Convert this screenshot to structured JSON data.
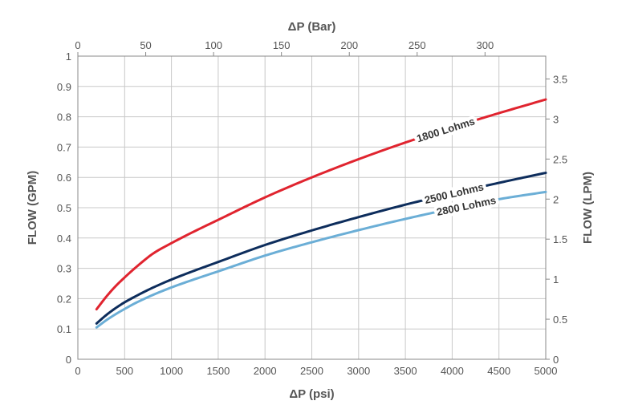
{
  "chart_data": {
    "type": "line",
    "x_label": "ΔP (psi)",
    "x_top_label": "ΔP (Bar)",
    "y_label": "FLOW (GPM)",
    "y_right_label": "FLOW (LPM)",
    "x_range": [
      0,
      5000
    ],
    "y_range": [
      0,
      1
    ],
    "x_top_range": [
      0,
      344.74
    ],
    "y_right_range": [
      0,
      3.785
    ],
    "x_ticks": [
      0,
      500,
      1000,
      1500,
      2000,
      2500,
      3000,
      3500,
      4000,
      4500,
      5000
    ],
    "y_ticks": [
      0,
      0.1,
      0.2,
      0.3,
      0.4,
      0.5,
      0.6,
      0.7,
      0.8,
      0.9,
      1
    ],
    "y_tick_labels": [
      "0",
      "0.1",
      "0.2",
      "0.3",
      "0.4",
      "0.5",
      "0.6",
      "0.7",
      "0.8",
      "0.9",
      "1"
    ],
    "x_top_ticks": [
      0,
      50,
      100,
      150,
      200,
      250,
      300
    ],
    "y_right_ticks": [
      0,
      0.5,
      1,
      1.5,
      2,
      2.5,
      3,
      3.5
    ],
    "y_right_tick_labels": [
      "0",
      "0.5",
      "1",
      "1.5",
      "2",
      "2.5",
      "3",
      "3.5"
    ],
    "grid": true,
    "series": [
      {
        "name": "1800 Lohms",
        "color": "#e0242f",
        "label_at_x": 3930,
        "x": [
          200,
          300,
          400,
          500,
          600,
          700,
          800,
          1000,
          1200,
          1500,
          2000,
          2500,
          3000,
          3500,
          4000,
          4500,
          5000
        ],
        "y": [
          0.165,
          0.205,
          0.24,
          0.27,
          0.298,
          0.324,
          0.348,
          0.383,
          0.415,
          0.46,
          0.534,
          0.6,
          0.66,
          0.715,
          0.765,
          0.812,
          0.857
        ]
      },
      {
        "name": "2500 Lohms",
        "color": "#0d2d5c",
        "label_at_x": 4020,
        "x": [
          200,
          300,
          400,
          500,
          600,
          700,
          800,
          1000,
          1200,
          1500,
          2000,
          2500,
          3000,
          3500,
          4000,
          4500,
          5000
        ],
        "y": [
          0.118,
          0.145,
          0.168,
          0.188,
          0.205,
          0.221,
          0.236,
          0.263,
          0.287,
          0.321,
          0.377,
          0.425,
          0.469,
          0.51,
          0.547,
          0.582,
          0.615
        ]
      },
      {
        "name": "2800 Lohms",
        "color": "#6baed6",
        "label_at_x": 4150,
        "x": [
          200,
          300,
          400,
          500,
          600,
          700,
          800,
          1000,
          1200,
          1500,
          2000,
          2500,
          3000,
          3500,
          4000,
          4500,
          5000
        ],
        "y": [
          0.105,
          0.128,
          0.148,
          0.166,
          0.183,
          0.198,
          0.212,
          0.237,
          0.259,
          0.29,
          0.342,
          0.386,
          0.426,
          0.463,
          0.497,
          0.528,
          0.552
        ]
      }
    ]
  }
}
